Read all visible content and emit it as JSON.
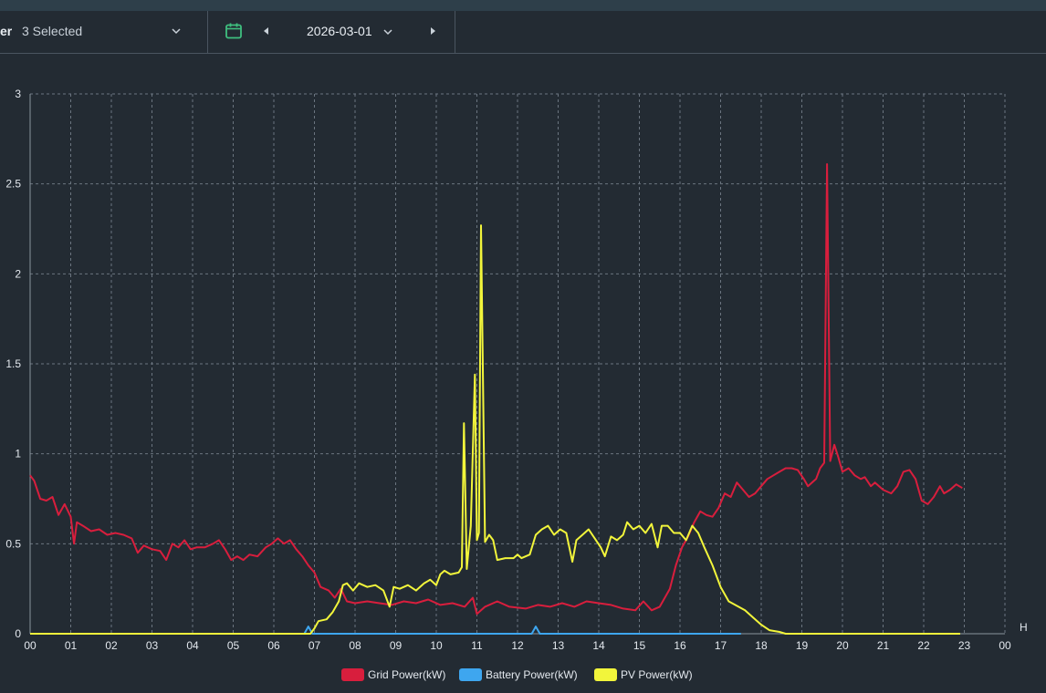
{
  "toolbar": {
    "selector_label": "er",
    "selector_value": "3 Selected",
    "date": "2026-03-01"
  },
  "icons": {
    "calendar": "calendar-icon",
    "prev": "caret-left-icon",
    "next": "caret-right-icon",
    "dropdown": "chevron-down-icon",
    "calendar_color": "#3fbf7f"
  },
  "chart_data": {
    "type": "line",
    "x_unit": "H",
    "x_ticks": [
      "00",
      "01",
      "02",
      "03",
      "04",
      "05",
      "06",
      "07",
      "08",
      "09",
      "10",
      "11",
      "12",
      "13",
      "14",
      "15",
      "16",
      "17",
      "18",
      "19",
      "20",
      "21",
      "22",
      "23",
      "00"
    ],
    "xlim": [
      0,
      24
    ],
    "ylim": [
      0,
      3
    ],
    "y_ticks": [
      "0",
      "0.5",
      "1",
      "1.5",
      "2",
      "2.5",
      "3"
    ],
    "grid": true,
    "legend_position": "bottom-center",
    "series": [
      {
        "name": "Grid Power(kW)",
        "color": "#d81e3d",
        "points": [
          [
            0,
            0.88
          ],
          [
            0.1,
            0.85
          ],
          [
            0.25,
            0.75
          ],
          [
            0.4,
            0.74
          ],
          [
            0.55,
            0.76
          ],
          [
            0.7,
            0.66
          ],
          [
            0.85,
            0.72
          ],
          [
            1.0,
            0.65
          ],
          [
            1.08,
            0.5
          ],
          [
            1.15,
            0.62
          ],
          [
            1.3,
            0.6
          ],
          [
            1.5,
            0.57
          ],
          [
            1.7,
            0.58
          ],
          [
            1.9,
            0.55
          ],
          [
            2.1,
            0.56
          ],
          [
            2.3,
            0.55
          ],
          [
            2.5,
            0.53
          ],
          [
            2.65,
            0.45
          ],
          [
            2.8,
            0.49
          ],
          [
            3.0,
            0.47
          ],
          [
            3.2,
            0.46
          ],
          [
            3.35,
            0.41
          ],
          [
            3.5,
            0.5
          ],
          [
            3.65,
            0.48
          ],
          [
            3.8,
            0.52
          ],
          [
            3.95,
            0.47
          ],
          [
            4.1,
            0.48
          ],
          [
            4.3,
            0.48
          ],
          [
            4.5,
            0.5
          ],
          [
            4.65,
            0.52
          ],
          [
            4.8,
            0.47
          ],
          [
            4.95,
            0.41
          ],
          [
            5.1,
            0.43
          ],
          [
            5.25,
            0.41
          ],
          [
            5.4,
            0.44
          ],
          [
            5.6,
            0.43
          ],
          [
            5.8,
            0.48
          ],
          [
            5.95,
            0.5
          ],
          [
            6.1,
            0.53
          ],
          [
            6.25,
            0.5
          ],
          [
            6.4,
            0.52
          ],
          [
            6.55,
            0.47
          ],
          [
            6.7,
            0.43
          ],
          [
            6.85,
            0.38
          ],
          [
            7.0,
            0.34
          ],
          [
            7.15,
            0.26
          ],
          [
            7.35,
            0.24
          ],
          [
            7.5,
            0.2
          ],
          [
            7.65,
            0.25
          ],
          [
            7.8,
            0.18
          ],
          [
            8.0,
            0.17
          ],
          [
            8.3,
            0.18
          ],
          [
            8.6,
            0.17
          ],
          [
            8.9,
            0.16
          ],
          [
            9.2,
            0.18
          ],
          [
            9.5,
            0.17
          ],
          [
            9.8,
            0.19
          ],
          [
            10.1,
            0.16
          ],
          [
            10.4,
            0.17
          ],
          [
            10.7,
            0.15
          ],
          [
            10.9,
            0.2
          ],
          [
            11.0,
            0.11
          ],
          [
            11.2,
            0.15
          ],
          [
            11.5,
            0.18
          ],
          [
            11.8,
            0.15
          ],
          [
            12.2,
            0.14
          ],
          [
            12.5,
            0.16
          ],
          [
            12.8,
            0.15
          ],
          [
            13.1,
            0.17
          ],
          [
            13.4,
            0.15
          ],
          [
            13.7,
            0.18
          ],
          [
            14.0,
            0.17
          ],
          [
            14.3,
            0.16
          ],
          [
            14.6,
            0.14
          ],
          [
            14.9,
            0.13
          ],
          [
            15.1,
            0.18
          ],
          [
            15.3,
            0.13
          ],
          [
            15.5,
            0.15
          ],
          [
            15.75,
            0.25
          ],
          [
            15.9,
            0.38
          ],
          [
            16.05,
            0.48
          ],
          [
            16.2,
            0.54
          ],
          [
            16.35,
            0.62
          ],
          [
            16.5,
            0.68
          ],
          [
            16.65,
            0.66
          ],
          [
            16.8,
            0.65
          ],
          [
            16.95,
            0.7
          ],
          [
            17.1,
            0.78
          ],
          [
            17.25,
            0.76
          ],
          [
            17.4,
            0.84
          ],
          [
            17.55,
            0.8
          ],
          [
            17.7,
            0.76
          ],
          [
            17.85,
            0.78
          ],
          [
            18.0,
            0.82
          ],
          [
            18.15,
            0.86
          ],
          [
            18.3,
            0.88
          ],
          [
            18.45,
            0.9
          ],
          [
            18.6,
            0.92
          ],
          [
            18.75,
            0.92
          ],
          [
            18.9,
            0.91
          ],
          [
            19.05,
            0.86
          ],
          [
            19.15,
            0.82
          ],
          [
            19.25,
            0.84
          ],
          [
            19.35,
            0.86
          ],
          [
            19.45,
            0.92
          ],
          [
            19.55,
            0.95
          ],
          [
            19.62,
            2.61
          ],
          [
            19.7,
            0.96
          ],
          [
            19.8,
            1.05
          ],
          [
            19.9,
            0.98
          ],
          [
            20.0,
            0.9
          ],
          [
            20.15,
            0.92
          ],
          [
            20.3,
            0.88
          ],
          [
            20.45,
            0.86
          ],
          [
            20.55,
            0.87
          ],
          [
            20.7,
            0.82
          ],
          [
            20.8,
            0.84
          ],
          [
            21.0,
            0.8
          ],
          [
            21.2,
            0.78
          ],
          [
            21.35,
            0.82
          ],
          [
            21.5,
            0.9
          ],
          [
            21.65,
            0.91
          ],
          [
            21.8,
            0.86
          ],
          [
            21.95,
            0.74
          ],
          [
            22.1,
            0.72
          ],
          [
            22.25,
            0.76
          ],
          [
            22.4,
            0.82
          ],
          [
            22.5,
            0.78
          ],
          [
            22.65,
            0.8
          ],
          [
            22.8,
            0.83
          ],
          [
            22.95,
            0.81
          ]
        ]
      },
      {
        "name": "Battery Power(kW)",
        "color": "#3ea6ef",
        "points": [
          [
            0,
            0.0
          ],
          [
            6.0,
            0.0
          ],
          [
            6.75,
            0.0
          ],
          [
            6.85,
            0.04
          ],
          [
            6.95,
            0.0
          ],
          [
            7.5,
            0.0
          ],
          [
            12.35,
            0.0
          ],
          [
            12.45,
            0.04
          ],
          [
            12.55,
            0.0
          ],
          [
            16.6,
            0.0
          ],
          [
            17.5,
            0.0
          ]
        ]
      },
      {
        "name": "PV Power(kW)",
        "color": "#f2f53b",
        "points": [
          [
            0,
            0.0
          ],
          [
            5.25,
            0.0
          ],
          [
            5.4,
            0.0
          ],
          [
            6.6,
            0.0
          ],
          [
            6.9,
            0.0
          ],
          [
            7.0,
            0.03
          ],
          [
            7.1,
            0.07
          ],
          [
            7.3,
            0.08
          ],
          [
            7.45,
            0.12
          ],
          [
            7.6,
            0.18
          ],
          [
            7.7,
            0.27
          ],
          [
            7.8,
            0.28
          ],
          [
            7.95,
            0.24
          ],
          [
            8.1,
            0.28
          ],
          [
            8.3,
            0.26
          ],
          [
            8.5,
            0.27
          ],
          [
            8.7,
            0.24
          ],
          [
            8.85,
            0.15
          ],
          [
            8.95,
            0.26
          ],
          [
            9.1,
            0.25
          ],
          [
            9.3,
            0.27
          ],
          [
            9.5,
            0.24
          ],
          [
            9.7,
            0.28
          ],
          [
            9.85,
            0.3
          ],
          [
            10.0,
            0.27
          ],
          [
            10.1,
            0.33
          ],
          [
            10.2,
            0.35
          ],
          [
            10.35,
            0.33
          ],
          [
            10.55,
            0.34
          ],
          [
            10.63,
            0.37
          ],
          [
            10.68,
            1.17
          ],
          [
            10.75,
            0.36
          ],
          [
            10.85,
            0.6
          ],
          [
            10.95,
            1.44
          ],
          [
            11.0,
            0.52
          ],
          [
            11.05,
            0.56
          ],
          [
            11.1,
            2.27
          ],
          [
            11.2,
            0.51
          ],
          [
            11.3,
            0.55
          ],
          [
            11.4,
            0.52
          ],
          [
            11.5,
            0.41
          ],
          [
            11.7,
            0.42
          ],
          [
            11.9,
            0.42
          ],
          [
            12.0,
            0.44
          ],
          [
            12.1,
            0.42
          ],
          [
            12.3,
            0.44
          ],
          [
            12.45,
            0.55
          ],
          [
            12.6,
            0.58
          ],
          [
            12.75,
            0.6
          ],
          [
            12.9,
            0.55
          ],
          [
            13.05,
            0.58
          ],
          [
            13.2,
            0.56
          ],
          [
            13.35,
            0.4
          ],
          [
            13.45,
            0.52
          ],
          [
            13.6,
            0.55
          ],
          [
            13.75,
            0.58
          ],
          [
            13.9,
            0.53
          ],
          [
            14.05,
            0.48
          ],
          [
            14.15,
            0.43
          ],
          [
            14.3,
            0.54
          ],
          [
            14.45,
            0.52
          ],
          [
            14.6,
            0.55
          ],
          [
            14.7,
            0.62
          ],
          [
            14.85,
            0.58
          ],
          [
            15.0,
            0.6
          ],
          [
            15.15,
            0.56
          ],
          [
            15.3,
            0.61
          ],
          [
            15.45,
            0.48
          ],
          [
            15.55,
            0.6
          ],
          [
            15.7,
            0.6
          ],
          [
            15.85,
            0.56
          ],
          [
            16.0,
            0.56
          ],
          [
            16.15,
            0.52
          ],
          [
            16.3,
            0.6
          ],
          [
            16.45,
            0.56
          ],
          [
            16.6,
            0.48
          ],
          [
            16.8,
            0.38
          ],
          [
            17.0,
            0.26
          ],
          [
            17.2,
            0.18
          ],
          [
            17.6,
            0.13
          ],
          [
            17.8,
            0.09
          ],
          [
            18.0,
            0.05
          ],
          [
            18.2,
            0.02
          ],
          [
            18.45,
            0.01
          ],
          [
            18.6,
            0.0
          ],
          [
            18.75,
            0.0
          ],
          [
            21.2,
            0.0
          ],
          [
            21.3,
            0.0
          ],
          [
            22.9,
            0.0
          ]
        ]
      }
    ]
  }
}
